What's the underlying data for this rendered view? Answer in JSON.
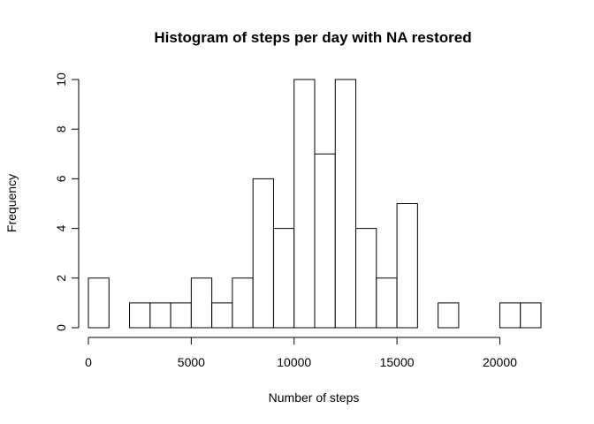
{
  "chart_data": {
    "type": "histogram",
    "title": "Histogram of steps per day with NA restored",
    "xlabel": "Number of steps",
    "ylabel": "Frequency",
    "bin_width": 1000,
    "bins_start": 0,
    "bin_counts": [
      2,
      0,
      1,
      1,
      1,
      2,
      1,
      2,
      6,
      4,
      10,
      7,
      10,
      4,
      2,
      5,
      0,
      1,
      0,
      0,
      1,
      1
    ],
    "xlim": [
      0,
      22000
    ],
    "ylim": [
      0,
      10
    ],
    "x_ticks": [
      0,
      5000,
      10000,
      15000,
      20000
    ],
    "y_ticks": [
      0,
      2,
      4,
      6,
      8,
      10
    ],
    "x_tick_labels": [
      "0",
      "5000",
      "10000",
      "15000",
      "20000"
    ],
    "y_tick_labels": [
      "0",
      "2",
      "4",
      "6",
      "8",
      "10"
    ],
    "grid": false,
    "bar_fill": "#ffffff",
    "bar_stroke": "#000000"
  }
}
